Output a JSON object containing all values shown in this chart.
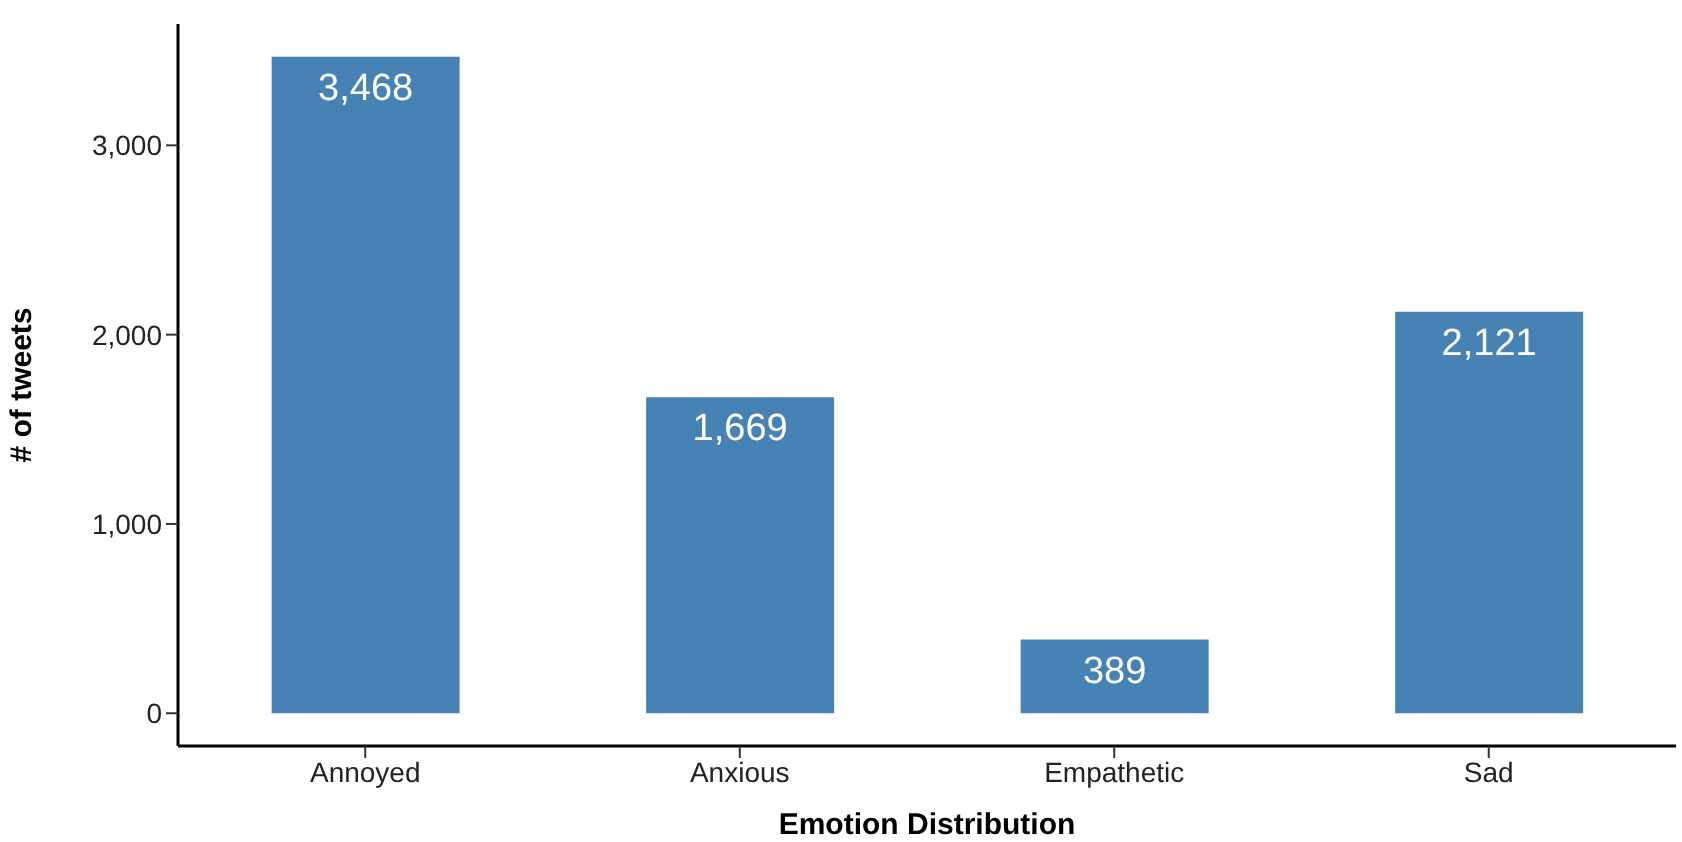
{
  "chart_data": {
    "type": "bar",
    "xlabel": "Emotion Distribution",
    "ylabel": "# of tweets",
    "categories": [
      "Annoyed",
      "Anxious",
      "Empathetic",
      "Sad"
    ],
    "values": [
      3468,
      1669,
      389,
      2121
    ],
    "color": "#4682b4",
    "ylim": [
      -173,
      3641
    ],
    "yticks": [
      0,
      {
        "value": 1000,
        "label": "1,000"
      },
      {
        "value": 2000,
        "label": "2,000"
      },
      {
        "value": 3000,
        "label": "3,000"
      }
    ],
    "grid": false,
    "value_labels": [
      "3,468",
      "1,669",
      "389",
      "2,121"
    ]
  }
}
